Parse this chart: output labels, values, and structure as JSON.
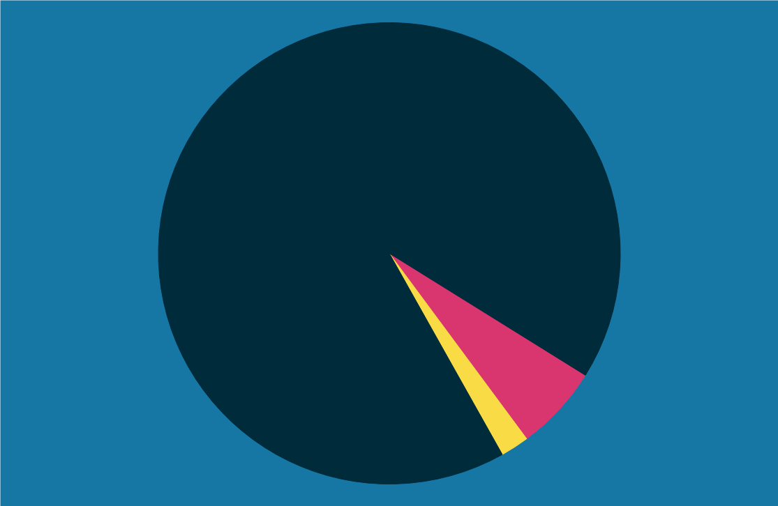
{
  "chart_data": {
    "type": "pie",
    "categories": [
      null,
      null,
      null
    ],
    "values": [
      6,
      2,
      92
    ],
    "colors": [
      "#d93670",
      "#f9dc45",
      "#002b3a"
    ]
  }
}
